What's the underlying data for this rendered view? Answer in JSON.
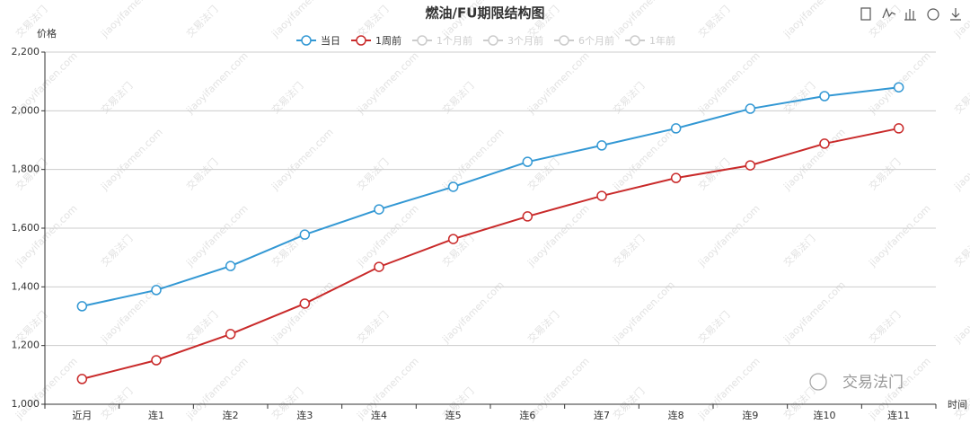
{
  "chart_data": {
    "type": "line",
    "title": "燃油/FU期限结构图",
    "y_label": "价格",
    "x_label": "时间",
    "watermark": [
      "交易法门",
      "jiaoyifamen.com"
    ],
    "categories": [
      "近月",
      "连1",
      "连2",
      "连3",
      "连4",
      "连5",
      "连6",
      "连7",
      "连8",
      "连9",
      "连10",
      "连11"
    ],
    "series": [
      {
        "name": "当日",
        "color": "#3398d4",
        "visible": true,
        "values": [
          1334,
          1389,
          1471,
          1578,
          1664,
          1741,
          1826,
          1882,
          1940,
          2007,
          2050,
          2080
        ]
      },
      {
        "name": "1周前",
        "color": "#c92a2a",
        "visible": true,
        "values": [
          1086,
          1150,
          1239,
          1343,
          1468,
          1563,
          1640,
          1710,
          1771,
          1814,
          1888,
          1940
        ]
      },
      {
        "name": "1个月前",
        "color": "#cccccc",
        "visible": false,
        "values": [
          null,
          null,
          null,
          null,
          null,
          null,
          null,
          null,
          null,
          null,
          null,
          null
        ]
      },
      {
        "name": "3个月前",
        "color": "#cccccc",
        "visible": false,
        "values": [
          null,
          null,
          null,
          null,
          null,
          null,
          null,
          null,
          null,
          null,
          null,
          null
        ]
      },
      {
        "name": "6个月前",
        "color": "#cccccc",
        "visible": false,
        "values": [
          null,
          null,
          null,
          null,
          null,
          null,
          null,
          null,
          null,
          null,
          null,
          null
        ]
      },
      {
        "name": "1年前",
        "color": "#cccccc",
        "visible": false,
        "values": [
          null,
          null,
          null,
          null,
          null,
          null,
          null,
          null,
          null,
          null,
          null,
          null
        ]
      }
    ],
    "ylim": [
      1000,
      2200
    ],
    "yticks": [
      {
        "value": 1000,
        "label": "1,000"
      },
      {
        "value": 1200,
        "label": "1,200"
      },
      {
        "value": 1400,
        "label": "1,400"
      },
      {
        "value": 1600,
        "label": "1,600"
      },
      {
        "value": 1800,
        "label": "1,800"
      },
      {
        "value": 2000,
        "label": "2,000"
      },
      {
        "value": 2200,
        "label": "2,200"
      }
    ],
    "grid": true
  }
}
